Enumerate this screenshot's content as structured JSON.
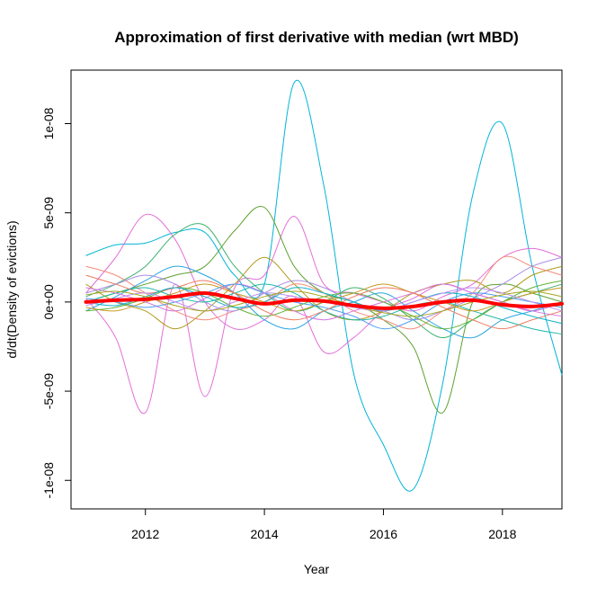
{
  "chart_data": {
    "type": "line",
    "title": "Approximation of first derivative with median (wrt MBD)",
    "xlabel": "Year",
    "ylabel": "d/dt(Density of evictions)",
    "xlim": [
      2010.75,
      2019.0
    ],
    "ylim": [
      -1.16e-08,
      1.3e-08
    ],
    "x_ticks": [
      2012,
      2014,
      2016,
      2018
    ],
    "x_tick_labels": [
      "2012",
      "2014",
      "2016",
      "2018"
    ],
    "y_ticks": [
      -1e-08,
      -5e-09,
      0,
      5e-09,
      1e-08
    ],
    "y_tick_labels": [
      "-1e-08",
      "-5e-09",
      "0e+00",
      "5e-09",
      "1e-08"
    ],
    "grid": false,
    "legend": "none",
    "x": [
      2011.0,
      2011.5,
      2012.0,
      2012.5,
      2013.0,
      2013.5,
      2014.0,
      2014.5,
      2015.0,
      2015.5,
      2016.0,
      2016.5,
      2017.0,
      2017.5,
      2018.0,
      2018.5,
      2019.0
    ],
    "median": {
      "color": "#ff0000",
      "values": [
        0.0,
        1e-10,
        1.5e-10,
        3e-10,
        5e-10,
        2e-10,
        -1e-10,
        1e-10,
        5e-11,
        -2e-10,
        -3.5e-10,
        -2.5e-10,
        0.0,
        1e-10,
        -1.5e-10,
        -2.5e-10,
        -1e-10
      ]
    },
    "series": [
      {
        "color": "#00b5d8",
        "values": [
          2.6e-09,
          3.2e-09,
          3.3e-09,
          3.9e-09,
          3.9e-09,
          1.5e-09,
          1e-09,
          1.23e-08,
          6.5e-09,
          -4e-09,
          -8e-09,
          -1.05e-08,
          -4.5e-09,
          6e-09,
          1e-08,
          2e-09,
          -4.1e-09
        ]
      },
      {
        "color": "#e36fd8",
        "values": [
          2e-10,
          -2e-09,
          -6.2e-09,
          1e-09,
          -5.3e-09,
          8e-10,
          1.5e-09,
          4.8e-09,
          1e-09,
          5e-10,
          0.0,
          -5e-10,
          3e-10,
          1e-09,
          2.5e-09,
          3e-09,
          2.5e-09
        ]
      },
      {
        "color": "#e36fd8",
        "values": [
          5e-10,
          2.5e-09,
          4.9e-09,
          3.5e-09,
          0.0,
          -1.5e-09,
          -1e-09,
          3e-10,
          -2.8e-09,
          -2e-09,
          -5e-10,
          2e-10,
          1e-09,
          5e-10,
          0.0,
          -5e-10,
          0.0
        ]
      },
      {
        "color": "#5da12e",
        "values": [
          0.0,
          5e-10,
          1e-09,
          1.5e-09,
          2e-09,
          4e-09,
          5.3e-09,
          2e-09,
          5e-10,
          0.0,
          -1e-09,
          -2.5e-09,
          -6.2e-09,
          0.0,
          1e-09,
          5e-10,
          0.0
        ]
      },
      {
        "color": "#3ab26e",
        "values": [
          3e-10,
          1e-09,
          2e-09,
          3.8e-09,
          4.3e-09,
          2e-09,
          5e-10,
          -5e-10,
          0.0,
          8e-10,
          2e-10,
          -1e-09,
          -2e-09,
          -1e-09,
          0.0,
          5e-10,
          1e-09
        ]
      },
      {
        "color": "#b29a1d",
        "values": [
          1e-09,
          0.0,
          -5e-10,
          -1.5e-09,
          -5e-10,
          1e-09,
          2.5e-09,
          1e-09,
          -5e-10,
          -1e-09,
          -5e-10,
          5e-10,
          1e-09,
          1.2e-09,
          5e-10,
          1.5e-09,
          2e-09
        ]
      },
      {
        "color": "#f48b7c",
        "values": [
          2e-09,
          1.5e-09,
          5e-10,
          -5e-10,
          -1e-09,
          -5e-10,
          0.0,
          1e-09,
          5e-10,
          -5e-10,
          -1e-09,
          -1.5e-09,
          -5e-10,
          5e-10,
          2.5e-09,
          2e-09,
          1.5e-09
        ]
      },
      {
        "color": "#28a5e3",
        "values": [
          -5e-10,
          3e-10,
          1.2e-09,
          2e-09,
          1.5e-09,
          5e-10,
          -1e-09,
          -1.5e-09,
          -5e-10,
          0.0,
          5e-10,
          -5e-10,
          -1.5e-09,
          -2e-09,
          -1e-09,
          -5e-10,
          0.0
        ]
      },
      {
        "color": "#a98ee6",
        "values": [
          5e-10,
          1e-09,
          1.5e-09,
          1e-09,
          0.0,
          -5e-10,
          5e-10,
          1.2e-09,
          8e-10,
          0.0,
          -5e-10,
          -1e-09,
          -5e-10,
          2e-10,
          1e-09,
          2e-09,
          2.5e-09
        ]
      },
      {
        "color": "#1cb8a8",
        "values": [
          0.0,
          5e-10,
          8e-10,
          3e-10,
          0.0,
          5e-10,
          1e-09,
          5e-10,
          -5e-10,
          -1e-09,
          -8e-10,
          -2e-10,
          0.0,
          -5e-10,
          -1e-09,
          -1.5e-09,
          -1.8e-09
        ]
      },
      {
        "color": "#c99a23",
        "values": [
          -3e-10,
          -5e-10,
          0.0,
          5e-10,
          1e-09,
          5e-10,
          0.0,
          -5e-10,
          0.0,
          5e-10,
          1e-09,
          5e-10,
          0.0,
          -5e-10,
          0.0,
          5e-10,
          8e-10
        ]
      },
      {
        "color": "#d674dc",
        "values": [
          8e-10,
          5e-10,
          0.0,
          -5e-10,
          2e-10,
          1e-09,
          5e-10,
          -5e-10,
          -1e-09,
          -5e-10,
          0.0,
          5e-10,
          1e-09,
          5e-10,
          0.0,
          -5e-10,
          -8e-10
        ]
      },
      {
        "color": "#4f9ff0",
        "values": [
          2e-10,
          0.0,
          -3e-10,
          0.0,
          5e-10,
          1e-09,
          5e-10,
          0.0,
          -3e-10,
          -8e-10,
          -1.5e-09,
          -1e-09,
          0.0,
          5e-10,
          3e-10,
          0.0,
          -3e-10
        ]
      },
      {
        "color": "#61b33b",
        "values": [
          -5e-10,
          -3e-10,
          2e-10,
          8e-10,
          5e-10,
          -3e-10,
          -8e-10,
          -3e-10,
          3e-10,
          5e-10,
          0.0,
          -8e-10,
          -1.5e-09,
          -1e-09,
          0.0,
          8e-10,
          1.2e-09
        ]
      },
      {
        "color": "#ea7b5f",
        "values": [
          1.5e-09,
          1e-09,
          5e-10,
          8e-10,
          1.2e-09,
          5e-10,
          -5e-10,
          -1e-09,
          -5e-10,
          3e-10,
          8e-10,
          5e-10,
          -3e-10,
          -1e-09,
          -1.5e-09,
          -1e-09,
          -5e-10
        ]
      },
      {
        "color": "#12b3c9",
        "values": [
          0.0,
          -2e-10,
          3e-10,
          8e-10,
          3e-10,
          -3e-10,
          0.0,
          8e-10,
          5e-10,
          0.0,
          -5e-10,
          0.0,
          5e-10,
          3e-10,
          -3e-10,
          -8e-10,
          -1.2e-09
        ]
      },
      {
        "color": "#bc8fef",
        "values": [
          -2e-10,
          2e-10,
          5e-10,
          0.0,
          -5e-10,
          0.0,
          5e-10,
          3e-10,
          0.0,
          -3e-10,
          -5e-10,
          0.0,
          5e-10,
          8e-10,
          5e-10,
          0.0,
          -5e-10
        ]
      },
      {
        "color": "#a7a61c",
        "values": [
          4e-10,
          6e-10,
          3e-10,
          -2e-10,
          -5e-10,
          -2e-10,
          3e-10,
          6e-10,
          3e-10,
          -2e-10,
          -6e-10,
          -8e-10,
          -5e-10,
          0.0,
          4e-10,
          6e-10,
          3e-10
        ]
      }
    ]
  }
}
